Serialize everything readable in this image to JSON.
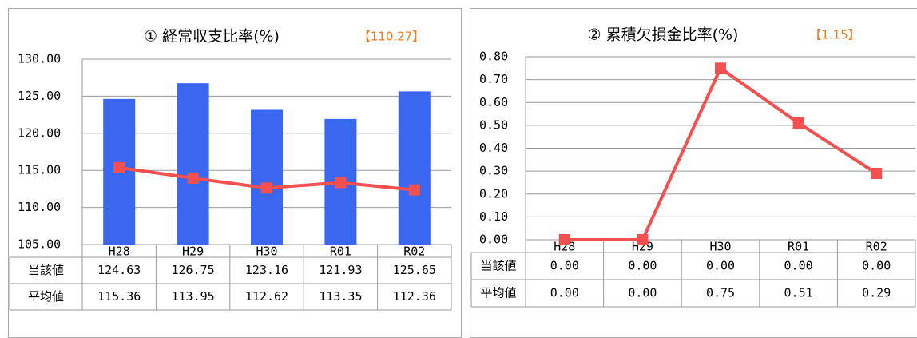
{
  "chart_data": [
    {
      "type": "combo",
      "title": "① 経常収支比率(%)",
      "annotation": "【110.27】",
      "categories": [
        "H28",
        "H29",
        "H30",
        "R01",
        "R02"
      ],
      "series": [
        {
          "name": "当該値",
          "type": "bar",
          "color": "#3a66f0",
          "values": [
            124.63,
            126.75,
            123.16,
            121.93,
            125.65
          ]
        },
        {
          "name": "平均値",
          "type": "line",
          "color": "#f4504f",
          "values": [
            115.36,
            113.95,
            112.62,
            113.35,
            112.36
          ]
        }
      ],
      "ylim": [
        105,
        130
      ],
      "yticks": [
        {
          "value": 105,
          "label": "105.00"
        },
        {
          "value": 110,
          "label": "110.00"
        },
        {
          "value": 115,
          "label": "115.00"
        },
        {
          "value": 120,
          "label": "120.00"
        },
        {
          "value": 125,
          "label": "125.00"
        },
        {
          "value": 130,
          "label": "130.00"
        }
      ],
      "grid": true
    },
    {
      "type": "combo",
      "title": "② 累積欠損金比率(%)",
      "annotation": "【1.15】",
      "categories": [
        "H28",
        "H29",
        "H30",
        "R01",
        "R02"
      ],
      "series": [
        {
          "name": "当該値",
          "type": "bar",
          "color": "#3a66f0",
          "values": [
            0,
            0,
            0,
            0,
            0
          ],
          "value_labels": [
            "0.00",
            "0.00",
            "0.00",
            "0.00",
            "0.00"
          ]
        },
        {
          "name": "平均値",
          "type": "line",
          "color": "#f4504f",
          "values": [
            0,
            0,
            0.75,
            0.51,
            0.29
          ],
          "value_labels": [
            "0.00",
            "0.00",
            "0.75",
            "0.51",
            "0.29"
          ]
        }
      ],
      "ylim": [
        0,
        0.8
      ],
      "yticks": [
        {
          "value": 0,
          "label": "0.00"
        },
        {
          "value": 0.1,
          "label": "0.10"
        },
        {
          "value": 0.2,
          "label": "0.20"
        },
        {
          "value": 0.3,
          "label": "0.30"
        },
        {
          "value": 0.4,
          "label": "0.40"
        },
        {
          "value": 0.5,
          "label": "0.50"
        },
        {
          "value": 0.6,
          "label": "0.60"
        },
        {
          "value": 0.7,
          "label": "0.70"
        },
        {
          "value": 0.8,
          "label": "0.80"
        }
      ],
      "grid": true
    }
  ]
}
